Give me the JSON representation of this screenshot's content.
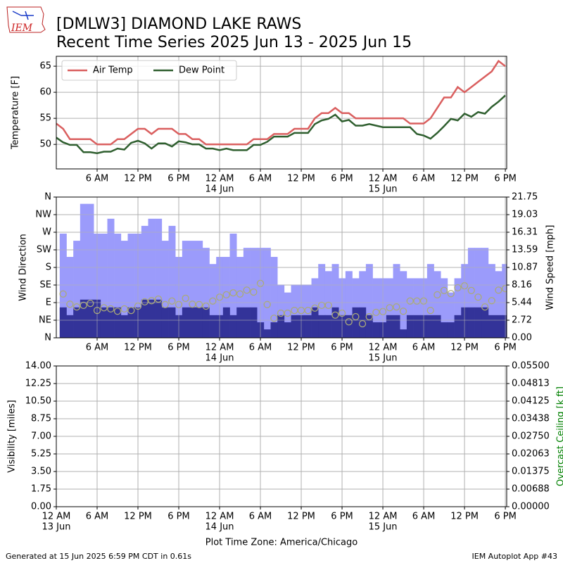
{
  "header": {
    "logo": "IEM",
    "title": "[DMLW3] DIAMOND LAKE RAWS",
    "subtitle": "Recent Time Series 2025 Jun 13 - 2025 Jun 15"
  },
  "footer": {
    "left": "Generated at 15 Jun 2025 6:59 PM CDT in 0.61s",
    "right": "IEM Autoplot App #43"
  },
  "chart_data": [
    {
      "type": "line",
      "ylabel": "Temperature [F]",
      "xlim": [
        0,
        66.2
      ],
      "xticks": [
        {
          "value": 6,
          "label": "6 AM"
        },
        {
          "value": 12,
          "label": "12 PM"
        },
        {
          "value": 18,
          "label": "6 PM"
        },
        {
          "value": 24,
          "label": "12 AM",
          "date": "14 Jun"
        },
        {
          "value": 30,
          "label": "6 AM"
        },
        {
          "value": 36,
          "label": "12 PM"
        },
        {
          "value": 42,
          "label": "6 PM"
        },
        {
          "value": 48,
          "label": "12 AM",
          "date": "15 Jun"
        },
        {
          "value": 54,
          "label": "6 AM"
        },
        {
          "value": 60,
          "label": "12 PM"
        },
        {
          "value": 66,
          "label": "6 PM"
        }
      ],
      "ylim": [
        45.3,
        66.9
      ],
      "yticks": [
        50,
        55,
        60,
        65
      ],
      "grid": true,
      "legend": "upper left",
      "x": [
        0,
        1,
        2,
        3,
        4,
        5,
        6,
        7,
        8,
        9,
        10,
        11,
        12,
        13,
        14,
        15,
        16,
        17,
        18,
        19,
        20,
        21,
        22,
        23,
        24,
        25,
        26,
        27,
        28,
        29,
        30,
        31,
        32,
        33,
        34,
        35,
        36,
        37,
        38,
        39,
        40,
        41,
        42,
        43,
        44,
        45,
        46,
        47,
        48,
        49,
        50,
        51,
        52,
        53,
        54,
        55,
        56,
        57,
        58,
        59,
        60,
        61,
        62,
        63,
        64,
        65,
        66
      ],
      "series": [
        {
          "name": "Air Temp",
          "color": "#da5f5f",
          "values": [
            54,
            53,
            51,
            51,
            51,
            51,
            50,
            50,
            50,
            51,
            51,
            52,
            53,
            53,
            52,
            53,
            53,
            53,
            52,
            52,
            51,
            51,
            50,
            50,
            50,
            50,
            50,
            50,
            50,
            51,
            51,
            51,
            52,
            52,
            52,
            53,
            53,
            53,
            55,
            56,
            56,
            57,
            56,
            56,
            55,
            55,
            55,
            55,
            55,
            55,
            55,
            55,
            54,
            54,
            54,
            55,
            57,
            59,
            59,
            61,
            60,
            61,
            62,
            63,
            64,
            66,
            65
          ]
        },
        {
          "name": "Dew Point",
          "color": "#2f5f2f",
          "values": [
            51.3,
            50.4,
            49.9,
            49.9,
            48.5,
            48.5,
            48.3,
            48.6,
            48.6,
            49.2,
            49,
            50.3,
            50.7,
            50.2,
            49.2,
            50.2,
            50.2,
            49.6,
            50.6,
            50.4,
            50,
            50,
            49.2,
            49.2,
            48.9,
            49.2,
            48.9,
            48.9,
            48.9,
            49.9,
            49.9,
            50.5,
            51.5,
            51.5,
            51.5,
            52.2,
            52.2,
            52.2,
            53.9,
            54.6,
            54.9,
            55.7,
            54.4,
            54.7,
            53.6,
            53.6,
            53.9,
            53.6,
            53.3,
            53.3,
            53.3,
            53.3,
            53.3,
            52,
            51.7,
            51.1,
            52.2,
            53.5,
            54.9,
            54.6,
            55.9,
            55.3,
            56.2,
            55.9,
            57.2,
            58.2,
            59.4
          ]
        }
      ]
    },
    {
      "type": "wind",
      "ylabel": "Wind Direction",
      "y2label": "Wind Speed [mph]",
      "xlim": [
        0,
        66.2
      ],
      "xticks": [
        {
          "value": 6,
          "label": "6 AM"
        },
        {
          "value": 12,
          "label": "12 PM"
        },
        {
          "value": 18,
          "label": "6 PM"
        },
        {
          "value": 24,
          "label": "12 AM",
          "date": "14 Jun"
        },
        {
          "value": 30,
          "label": "6 AM"
        },
        {
          "value": 36,
          "label": "12 PM"
        },
        {
          "value": 42,
          "label": "6 PM"
        },
        {
          "value": 48,
          "label": "12 AM",
          "date": "15 Jun"
        },
        {
          "value": 54,
          "label": "6 AM"
        },
        {
          "value": 60,
          "label": "12 PM"
        },
        {
          "value": 66,
          "label": "6 PM"
        }
      ],
      "ylim": [
        0,
        360
      ],
      "yticks": [
        {
          "value": 0,
          "label": "N"
        },
        {
          "value": 45,
          "label": "NE"
        },
        {
          "value": 90,
          "label": "E"
        },
        {
          "value": 135,
          "label": "SE"
        },
        {
          "value": 180,
          "label": "S"
        },
        {
          "value": 225,
          "label": "SW"
        },
        {
          "value": 270,
          "label": "W"
        },
        {
          "value": 315,
          "label": "NW"
        },
        {
          "value": 360,
          "label": "N"
        }
      ],
      "y2lim": [
        0,
        21.75
      ],
      "y2ticks": [
        {
          "value": 0,
          "label": "0.00"
        },
        {
          "value": 2.71875,
          "label": "2.72"
        },
        {
          "value": 5.4375,
          "label": "5.44"
        },
        {
          "value": 8.15625,
          "label": "8.16"
        },
        {
          "value": 10.875,
          "label": "10.87"
        },
        {
          "value": 13.59375,
          "label": "13.59"
        },
        {
          "value": 16.3125,
          "label": "16.31"
        },
        {
          "value": 19.03125,
          "label": "19.03"
        },
        {
          "value": 21.75,
          "label": "21.75"
        }
      ],
      "grid": true,
      "x": [
        1,
        2,
        3,
        4,
        5,
        6,
        7,
        8,
        9,
        10,
        11,
        12,
        13,
        14,
        15,
        16,
        17,
        18,
        19,
        20,
        21,
        22,
        23,
        24,
        25,
        26,
        27,
        28,
        29,
        30,
        31,
        32,
        33,
        34,
        35,
        36,
        37,
        38,
        39,
        40,
        41,
        42,
        43,
        44,
        45,
        46,
        47,
        48,
        49,
        50,
        51,
        52,
        53,
        54,
        55,
        56,
        57,
        58,
        59,
        60,
        61,
        62,
        63,
        64,
        65,
        66
      ],
      "series": [
        {
          "kind": "bar",
          "axis": "y2",
          "color": "#9b9bfb",
          "values": [
            16.1,
            12.5,
            15.0,
            20.7,
            20.7,
            16.1,
            16.1,
            18.4,
            16.1,
            15.0,
            16.1,
            16.1,
            17.3,
            18.4,
            18.4,
            15.0,
            17.3,
            12.5,
            15.0,
            15.0,
            15.0,
            13.9,
            11.4,
            12.5,
            12.5,
            16.1,
            12.5,
            13.9,
            13.9,
            13.9,
            13.9,
            12.5,
            8.2,
            7.0,
            8.2,
            8.2,
            8.2,
            9.2,
            11.4,
            10.3,
            11.4,
            9.2,
            10.3,
            9.2,
            10.3,
            11.4,
            9.2,
            9.2,
            9.2,
            11.4,
            10.3,
            9.2,
            9.2,
            9.2,
            11.4,
            10.3,
            9.2,
            7.0,
            9.2,
            11.4,
            13.9,
            13.9,
            13.9,
            11.4,
            10.3,
            11.4
          ]
        },
        {
          "kind": "bar",
          "axis": "y2",
          "color": "#333399",
          "values": [
            4.7,
            3.5,
            4.7,
            5.9,
            5.9,
            5.9,
            4.7,
            4.7,
            4.7,
            3.5,
            4.7,
            4.7,
            5.9,
            5.9,
            5.9,
            4.7,
            4.7,
            3.5,
            4.7,
            4.7,
            4.7,
            4.7,
            3.5,
            3.5,
            4.7,
            3.5,
            4.7,
            4.7,
            4.7,
            2.4,
            1.3,
            2.4,
            3.5,
            2.4,
            3.5,
            3.5,
            3.5,
            4.7,
            3.5,
            3.5,
            4.7,
            3.5,
            3.5,
            4.7,
            4.7,
            3.5,
            2.4,
            2.4,
            3.5,
            3.5,
            1.3,
            3.5,
            3.5,
            3.5,
            3.5,
            3.5,
            2.4,
            2.4,
            3.5,
            4.7,
            4.7,
            4.7,
            4.7,
            3.5,
            3.5,
            3.5
          ]
        },
        {
          "kind": "scatter",
          "color": "#aaaa77",
          "values": [
            112,
            86,
            79,
            83,
            88,
            70,
            77,
            74,
            68,
            74,
            70,
            81,
            92,
            95,
            99,
            85,
            94,
            85,
            101,
            86,
            85,
            81,
            94,
            104,
            110,
            115,
            112,
            122,
            117,
            139,
            85,
            50,
            63,
            63,
            70,
            70,
            70,
            76,
            83,
            83,
            58,
            63,
            41,
            54,
            36,
            54,
            65,
            67,
            77,
            79,
            68,
            94,
            94,
            94,
            70,
            110,
            121,
            113,
            128,
            133,
            121,
            104,
            79,
            95,
            122,
            126
          ]
        }
      ]
    },
    {
      "type": "line",
      "ylabel": "Visibility [miles]",
      "y2label": "Overcast Ceiling [k ft]",
      "y2label_color": "#008000",
      "xlabel": "Plot Time Zone: America/Chicago",
      "xlim": [
        0,
        66.2
      ],
      "xticks": [
        {
          "value": 0,
          "label": "12 AM",
          "date": "13 Jun"
        },
        {
          "value": 6,
          "label": "6 AM"
        },
        {
          "value": 12,
          "label": "12 PM"
        },
        {
          "value": 18,
          "label": "6 PM"
        },
        {
          "value": 24,
          "label": "12 AM",
          "date": "14 Jun"
        },
        {
          "value": 30,
          "label": "6 AM"
        },
        {
          "value": 36,
          "label": "12 PM"
        },
        {
          "value": 42,
          "label": "6 PM"
        },
        {
          "value": 48,
          "label": "12 AM",
          "date": "15 Jun"
        },
        {
          "value": 54,
          "label": "6 AM"
        },
        {
          "value": 60,
          "label": "12 PM"
        },
        {
          "value": 66,
          "label": "6 PM"
        }
      ],
      "ylim": [
        0,
        14
      ],
      "yticks": [
        {
          "value": 0,
          "label": "0.00"
        },
        {
          "value": 1.75,
          "label": "1.75"
        },
        {
          "value": 3.5,
          "label": "3.50"
        },
        {
          "value": 5.25,
          "label": "5.25"
        },
        {
          "value": 7,
          "label": "7.00"
        },
        {
          "value": 8.75,
          "label": "8.75"
        },
        {
          "value": 10.5,
          "label": "10.50"
        },
        {
          "value": 12.25,
          "label": "12.25"
        },
        {
          "value": 14,
          "label": "14.00"
        }
      ],
      "y2lim": [
        0,
        0.055
      ],
      "y2ticks": [
        {
          "value": 0,
          "label": "0.00000"
        },
        {
          "value": 0.006875,
          "label": "0.00688"
        },
        {
          "value": 0.01375,
          "label": "0.01375"
        },
        {
          "value": 0.020625,
          "label": "0.02063"
        },
        {
          "value": 0.0275,
          "label": "0.02750"
        },
        {
          "value": 0.034375,
          "label": "0.03438"
        },
        {
          "value": 0.04125,
          "label": "0.04125"
        },
        {
          "value": 0.048125,
          "label": "0.04813"
        },
        {
          "value": 0.055,
          "label": "0.05500"
        }
      ],
      "grid": true,
      "x": [],
      "series": []
    }
  ]
}
